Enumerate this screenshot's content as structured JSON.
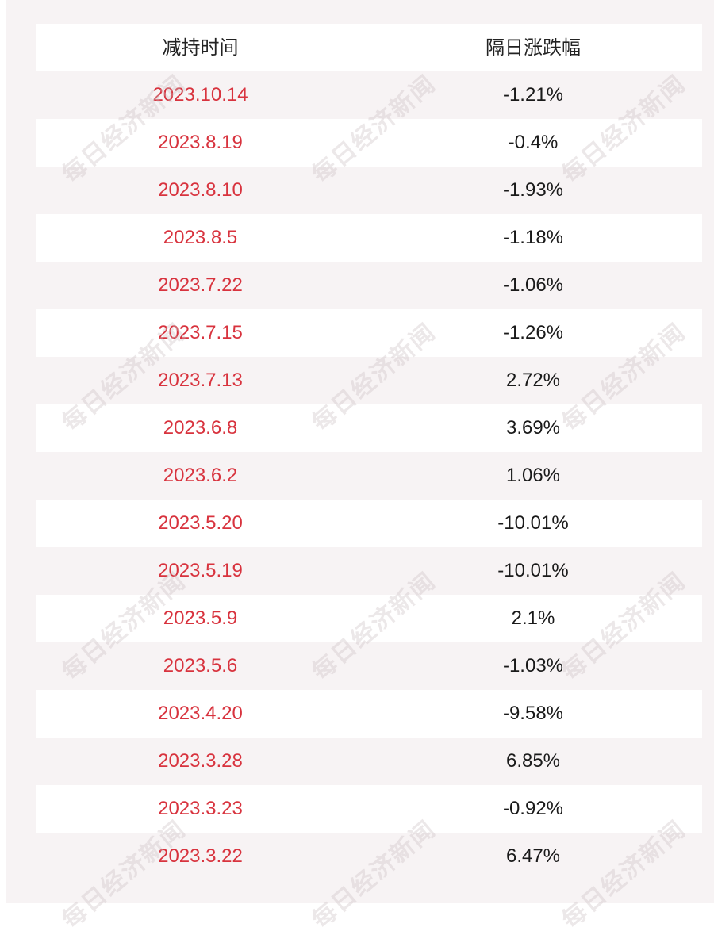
{
  "table": {
    "headers": {
      "date": "减持时间",
      "change": "隔日涨跌幅"
    },
    "rows": [
      {
        "date": "2023.10.14",
        "change": "-1.21%"
      },
      {
        "date": "2023.8.19",
        "change": "-0.4%"
      },
      {
        "date": "2023.8.10",
        "change": "-1.93%"
      },
      {
        "date": "2023.8.5",
        "change": "-1.18%"
      },
      {
        "date": "2023.7.22",
        "change": "-1.06%"
      },
      {
        "date": "2023.7.15",
        "change": "-1.26%"
      },
      {
        "date": "2023.7.13",
        "change": "2.72%"
      },
      {
        "date": "2023.6.8",
        "change": "3.69%"
      },
      {
        "date": "2023.6.2",
        "change": "1.06%"
      },
      {
        "date": "2023.5.20",
        "change": "-10.01%"
      },
      {
        "date": "2023.5.19",
        "change": "-10.01%"
      },
      {
        "date": "2023.5.9",
        "change": "2.1%"
      },
      {
        "date": "2023.5.6",
        "change": "-1.03%"
      },
      {
        "date": "2023.4.20",
        "change": "-9.58%"
      },
      {
        "date": "2023.3.28",
        "change": "6.85%"
      },
      {
        "date": "2023.3.23",
        "change": "-0.92%"
      },
      {
        "date": "2023.3.22",
        "change": "6.47%"
      }
    ]
  },
  "watermark": {
    "text": "每日经济新闻"
  },
  "colors": {
    "date_text": "#d8333e",
    "value_text": "#1a1a1a",
    "panel_background": "#f7f3f4",
    "row_background": "#ffffff"
  }
}
